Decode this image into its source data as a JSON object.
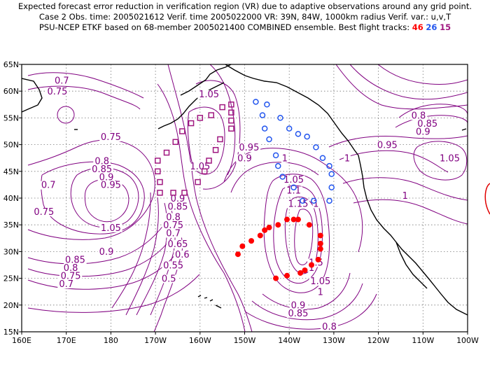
{
  "title": {
    "line1": "Expected forecast error reduction in verification region (VR) due to adaptive observations around any grid point.",
    "line2": "Case 2   Obs. time: 2005021612   Verif. time 2005022000   VR: 39N, 84W, 1000km radius   Verif. var.: u,v,T",
    "line3_prefix": "PSU-NCEP ETKF based on 68-member 2005021400 COMBINED ensemble.   Best flight tracks:",
    "track_46": "46",
    "track_26": "26",
    "track_15": "15"
  },
  "colors": {
    "contour": "#800080",
    "track_46": "#ff0000",
    "track_26": "#2255ee",
    "track_15": "#a01880"
  },
  "x_ticks": [
    "160E",
    "170E",
    "180",
    "170W",
    "160W",
    "150W",
    "140W",
    "130W",
    "120W",
    "110W",
    "100W"
  ],
  "y_ticks": [
    "15N",
    "20N",
    "25N",
    "30N",
    "35N",
    "40N",
    "45N",
    "50N",
    "55N",
    "60N",
    "65N"
  ],
  "contour_labels": [
    {
      "text": "0.7",
      "lon": 169,
      "lat": 61.5
    },
    {
      "text": "0.75",
      "lon": 168,
      "lat": 59.5
    },
    {
      "text": "0.75",
      "lon": 180,
      "lat": 51
    },
    {
      "text": "0.8",
      "lon": 178,
      "lat": 46.5
    },
    {
      "text": "0.85",
      "lon": 178,
      "lat": 45
    },
    {
      "text": "0.9",
      "lon": 179,
      "lat": 43.5
    },
    {
      "text": "0.95",
      "lon": 180,
      "lat": 42
    },
    {
      "text": "0.7",
      "lon": 166,
      "lat": 42
    },
    {
      "text": "0.75",
      "lon": 165,
      "lat": 37
    },
    {
      "text": "1.05",
      "lon": 180,
      "lat": 34
    },
    {
      "text": "0.9",
      "lon": 179,
      "lat": 29.5
    },
    {
      "text": "0.85",
      "lon": 172,
      "lat": 28
    },
    {
      "text": "0.8",
      "lon": 171,
      "lat": 26.5
    },
    {
      "text": "0.75",
      "lon": 171,
      "lat": 25
    },
    {
      "text": "0.7",
      "lon": 170,
      "lat": 23.5
    },
    {
      "text": "1.05",
      "lon": -158,
      "lat": 59
    },
    {
      "text": "1.05",
      "lon": -160,
      "lat": 45.5
    },
    {
      "text": "0.95",
      "lon": -149,
      "lat": 49
    },
    {
      "text": "0.9",
      "lon": -150,
      "lat": 47
    },
    {
      "text": "1",
      "lon": -141,
      "lat": 47
    },
    {
      "text": "0.9",
      "lon": -165,
      "lat": 39.5
    },
    {
      "text": "0.85",
      "lon": -165,
      "lat": 38
    },
    {
      "text": "0.8",
      "lon": -166,
      "lat": 36
    },
    {
      "text": "0.75",
      "lon": -166,
      "lat": 34.5
    },
    {
      "text": "0.7",
      "lon": -166,
      "lat": 33
    },
    {
      "text": "0.65",
      "lon": -165,
      "lat": 31
    },
    {
      "text": "0.6",
      "lon": -164,
      "lat": 29
    },
    {
      "text": "0.55",
      "lon": -166,
      "lat": 27
    },
    {
      "text": "0.5",
      "lon": -167,
      "lat": 24.5
    },
    {
      "text": "1.05",
      "lon": -139,
      "lat": 43
    },
    {
      "text": "1.1",
      "lon": -139,
      "lat": 41
    },
    {
      "text": "1.15",
      "lon": -138,
      "lat": 38.5
    },
    {
      "text": "1.5",
      "lon": -134,
      "lat": 27.5
    },
    {
      "text": "1",
      "lon": -135,
      "lat": 26.5
    },
    {
      "text": "1.05",
      "lon": -133,
      "lat": 24
    },
    {
      "text": "1",
      "lon": -133,
      "lat": 22
    },
    {
      "text": "0.9",
      "lon": -138,
      "lat": 19.5
    },
    {
      "text": "0.85",
      "lon": -138,
      "lat": 18
    },
    {
      "text": "0.8",
      "lon": -131,
      "lat": 15.5
    },
    {
      "text": "1",
      "lon": -134,
      "lat": 38.5
    },
    {
      "text": "0.8",
      "lon": -111,
      "lat": 55
    },
    {
      "text": "0.85",
      "lon": -109,
      "lat": 53.5
    },
    {
      "text": "0.9",
      "lon": -110,
      "lat": 52
    },
    {
      "text": "0.95",
      "lon": -118,
      "lat": 49.5
    },
    {
      "text": "1",
      "lon": -127,
      "lat": 47
    },
    {
      "text": "1.05",
      "lon": -104,
      "lat": 47
    },
    {
      "text": "1",
      "lon": -114,
      "lat": 40
    }
  ],
  "flight_tracks": [
    {
      "name": "46",
      "marker": "filled-circle",
      "color": "#ff0000",
      "points": [
        [
          -151.5,
          29.5
        ],
        [
          -150.5,
          31
        ],
        [
          -148.5,
          32
        ],
        [
          -146.5,
          33
        ],
        [
          -145.5,
          34
        ],
        [
          -144.5,
          34.5
        ],
        [
          -142.5,
          35
        ],
        [
          -140.5,
          36
        ],
        [
          -139,
          36
        ],
        [
          -138,
          36
        ],
        [
          -135.5,
          35
        ],
        [
          -133,
          33
        ],
        [
          -133,
          31.5
        ],
        [
          -133,
          30.5
        ],
        [
          -133.5,
          28.5
        ],
        [
          -135,
          27.5
        ],
        [
          -136.5,
          26.5
        ],
        [
          -137.5,
          26
        ],
        [
          -140.5,
          25.5
        ],
        [
          -143,
          25
        ]
      ]
    },
    {
      "name": "26",
      "marker": "open-circle",
      "color": "#2255ee",
      "points": [
        [
          -147.5,
          58
        ],
        [
          -145,
          57.5
        ],
        [
          -146,
          55.5
        ],
        [
          -142,
          55
        ],
        [
          -145.5,
          53
        ],
        [
          -140,
          53
        ],
        [
          -138,
          52
        ],
        [
          -136,
          51.5
        ],
        [
          -134,
          49.5
        ],
        [
          -144.5,
          51
        ],
        [
          -143,
          48
        ],
        [
          -142.5,
          46
        ],
        [
          -141.5,
          44
        ],
        [
          -139,
          42
        ],
        [
          -132.5,
          47.5
        ],
        [
          -131,
          46
        ],
        [
          -130.5,
          44.5
        ],
        [
          -130.5,
          42
        ],
        [
          -137,
          39.5
        ],
        [
          -134.5,
          39.5
        ],
        [
          -131,
          39.5
        ]
      ]
    },
    {
      "name": "15",
      "marker": "open-square",
      "color": "#a01880",
      "points": [
        [
          -155,
          57
        ],
        [
          -153,
          57.5
        ],
        [
          -153,
          56
        ],
        [
          -153,
          54.5
        ],
        [
          -153,
          53
        ],
        [
          -157.5,
          55.5
        ],
        [
          -160,
          55
        ],
        [
          -162,
          54
        ],
        [
          -164,
          52.5
        ],
        [
          -165.5,
          50.5
        ],
        [
          -167.5,
          48.5
        ],
        [
          -169.5,
          47
        ],
        [
          -169.5,
          45
        ],
        [
          -169,
          43
        ],
        [
          -169,
          41
        ],
        [
          -166,
          41
        ],
        [
          -163.5,
          41
        ],
        [
          -160.5,
          43
        ],
        [
          -159,
          45
        ],
        [
          -158,
          47
        ],
        [
          -156.5,
          49
        ],
        [
          -155.5,
          51
        ]
      ]
    }
  ]
}
